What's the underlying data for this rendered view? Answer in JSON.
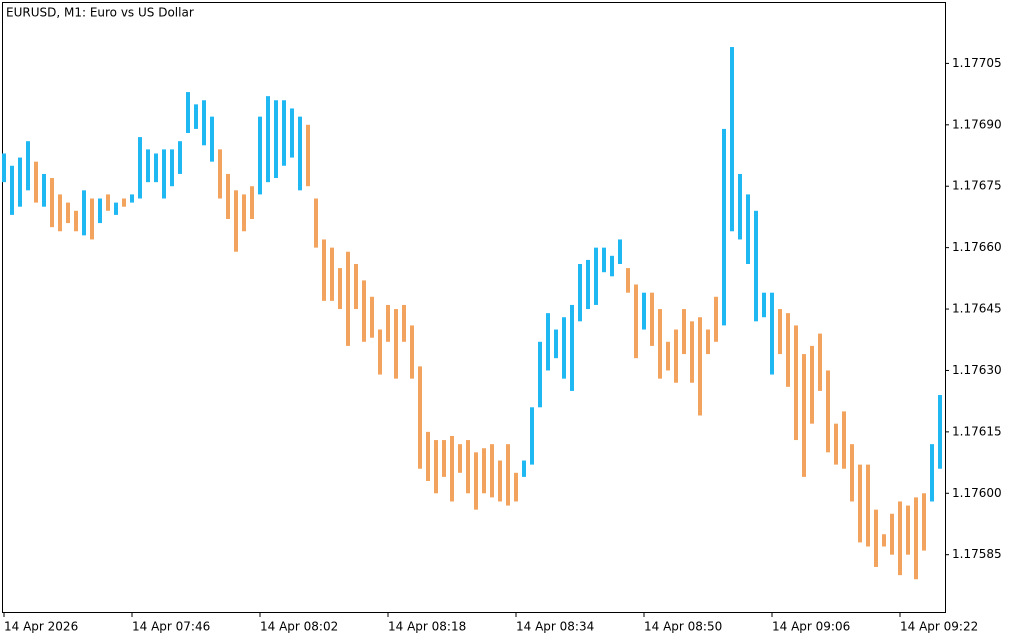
{
  "chart_data": {
    "type": "candlestick",
    "title": "EURUSD, M1:  Euro vs US Dollar",
    "up_color": "#1fb8f2",
    "down_color": "#f2a35e",
    "high": [
      1.17683,
      1.1768,
      1.17682,
      1.17686,
      1.17681,
      1.17678,
      1.17677,
      1.17673,
      1.17671,
      1.17669,
      1.17674,
      1.17672,
      1.17672,
      1.17673,
      1.17671,
      1.17672,
      1.17673,
      1.17687,
      1.17684,
      1.17683,
      1.17684,
      1.17684,
      1.17686,
      1.17698,
      1.17695,
      1.17696,
      1.17692,
      1.17684,
      1.17678,
      1.17674,
      1.17673,
      1.17675,
      1.17692,
      1.17697,
      1.17696,
      1.17696,
      1.17694,
      1.17692,
      1.1769,
      1.17672,
      1.17662,
      1.1766,
      1.17655,
      1.17659,
      1.17656,
      1.17652,
      1.17648,
      1.1764,
      1.17646,
      1.17645,
      1.17646,
      1.17641,
      1.17631,
      1.17615,
      1.17613,
      1.17613,
      1.17614,
      1.17612,
      1.17613,
      1.1761,
      1.17611,
      1.17612,
      1.17608,
      1.17612,
      1.17605,
      1.17608,
      1.17621,
      1.17637,
      1.17644,
      1.1764,
      1.17643,
      1.17646,
      1.17656,
      1.17657,
      1.1766,
      1.1766,
      1.17658,
      1.17662,
      1.17655,
      1.17651,
      1.17649,
      1.17649,
      1.17645,
      1.17637,
      1.1764,
      1.17645,
      1.17642,
      1.17643,
      1.1764,
      1.17648,
      1.17689,
      1.17709,
      1.17678,
      1.17673,
      1.17669,
      1.17649,
      1.17649,
      1.17645,
      1.17644,
      1.17641,
      1.17634,
      1.17636,
      1.17639,
      1.1763,
      1.17617,
      1.1762,
      1.17612,
      1.17607,
      1.17607,
      1.17596,
      1.1759,
      1.17595,
      1.17598,
      1.17597,
      1.17599,
      1.176,
      1.17612,
      1.17624
    ],
    "low": [
      1.17676,
      1.17668,
      1.1767,
      1.17674,
      1.17671,
      1.1767,
      1.17665,
      1.17664,
      1.17666,
      1.17664,
      1.17663,
      1.17662,
      1.17666,
      1.17669,
      1.17668,
      1.1767,
      1.17671,
      1.17672,
      1.17676,
      1.17676,
      1.17672,
      1.17675,
      1.17678,
      1.17688,
      1.17689,
      1.17685,
      1.17681,
      1.17672,
      1.17667,
      1.17659,
      1.17664,
      1.17667,
      1.17673,
      1.17676,
      1.17677,
      1.1768,
      1.17682,
      1.17674,
      1.17675,
      1.1766,
      1.17647,
      1.17647,
      1.17645,
      1.17636,
      1.17645,
      1.17637,
      1.17638,
      1.17629,
      1.17637,
      1.17628,
      1.17637,
      1.17628,
      1.17606,
      1.17603,
      1.176,
      1.17604,
      1.17598,
      1.17605,
      1.176,
      1.17596,
      1.176,
      1.17599,
      1.17598,
      1.17597,
      1.17598,
      1.17604,
      1.17607,
      1.17621,
      1.1763,
      1.17633,
      1.17628,
      1.17625,
      1.17642,
      1.17645,
      1.17646,
      1.17654,
      1.17653,
      1.17656,
      1.17649,
      1.17633,
      1.1764,
      1.17636,
      1.17628,
      1.1763,
      1.17627,
      1.17634,
      1.17627,
      1.17619,
      1.17634,
      1.17637,
      1.17641,
      1.17664,
      1.17662,
      1.17656,
      1.17642,
      1.17643,
      1.17629,
      1.17634,
      1.17626,
      1.17613,
      1.17604,
      1.17617,
      1.17625,
      1.1761,
      1.17607,
      1.17606,
      1.17598,
      1.17588,
      1.17587,
      1.17582,
      1.17587,
      1.17585,
      1.1758,
      1.17585,
      1.17579,
      1.17586,
      1.17598,
      1.17606
    ],
    "directions": [
      "up",
      "up",
      "up",
      "up",
      "down",
      "up",
      "down",
      "down",
      "down",
      "down",
      "up",
      "down",
      "up",
      "down",
      "up",
      "down",
      "up",
      "up",
      "up",
      "up",
      "up",
      "up",
      "up",
      "up",
      "up",
      "up",
      "up",
      "down",
      "down",
      "down",
      "down",
      "down",
      "up",
      "up",
      "up",
      "up",
      "up",
      "up",
      "down",
      "down",
      "down",
      "down",
      "down",
      "down",
      "down",
      "down",
      "down",
      "down",
      "down",
      "down",
      "down",
      "down",
      "down",
      "down",
      "down",
      "down",
      "down",
      "down",
      "down",
      "down",
      "down",
      "down",
      "down",
      "down",
      "down",
      "up",
      "up",
      "up",
      "up",
      "up",
      "up",
      "up",
      "up",
      "up",
      "up",
      "up",
      "up",
      "up",
      "down",
      "down",
      "up",
      "down",
      "down",
      "down",
      "down",
      "down",
      "down",
      "down",
      "down",
      "down",
      "up",
      "up",
      "up",
      "up",
      "up",
      "up",
      "up",
      "down",
      "down",
      "down",
      "down",
      "down",
      "down",
      "down",
      "down",
      "down",
      "down",
      "down",
      "down",
      "down",
      "down",
      "down",
      "down",
      "down",
      "down",
      "down",
      "up",
      "up"
    ],
    "ylim": [
      1.17571,
      1.1772
    ],
    "yticks": [
      {
        "value": 1.17585,
        "label": "1.17585"
      },
      {
        "value": 1.176,
        "label": "1.17600"
      },
      {
        "value": 1.17615,
        "label": "1.17615"
      },
      {
        "value": 1.1763,
        "label": "1.17630"
      },
      {
        "value": 1.17645,
        "label": "1.17645"
      },
      {
        "value": 1.1766,
        "label": "1.17660"
      },
      {
        "value": 1.17675,
        "label": "1.17675"
      },
      {
        "value": 1.1769,
        "label": "1.17690"
      },
      {
        "value": 1.17705,
        "label": "1.17705"
      }
    ],
    "xticks": [
      {
        "value": 0,
        "label": "14 Apr 2026"
      },
      {
        "value": 16,
        "label": "14 Apr 07:46"
      },
      {
        "value": 32,
        "label": "14 Apr 08:02"
      },
      {
        "value": 48,
        "label": "14 Apr 08:18"
      },
      {
        "value": 64,
        "label": "14 Apr 08:34"
      },
      {
        "value": 80,
        "label": "14 Apr 08:50"
      },
      {
        "value": 96,
        "label": "14 Apr 09:06"
      },
      {
        "value": 112,
        "label": "14 Apr 09:22"
      }
    ]
  }
}
